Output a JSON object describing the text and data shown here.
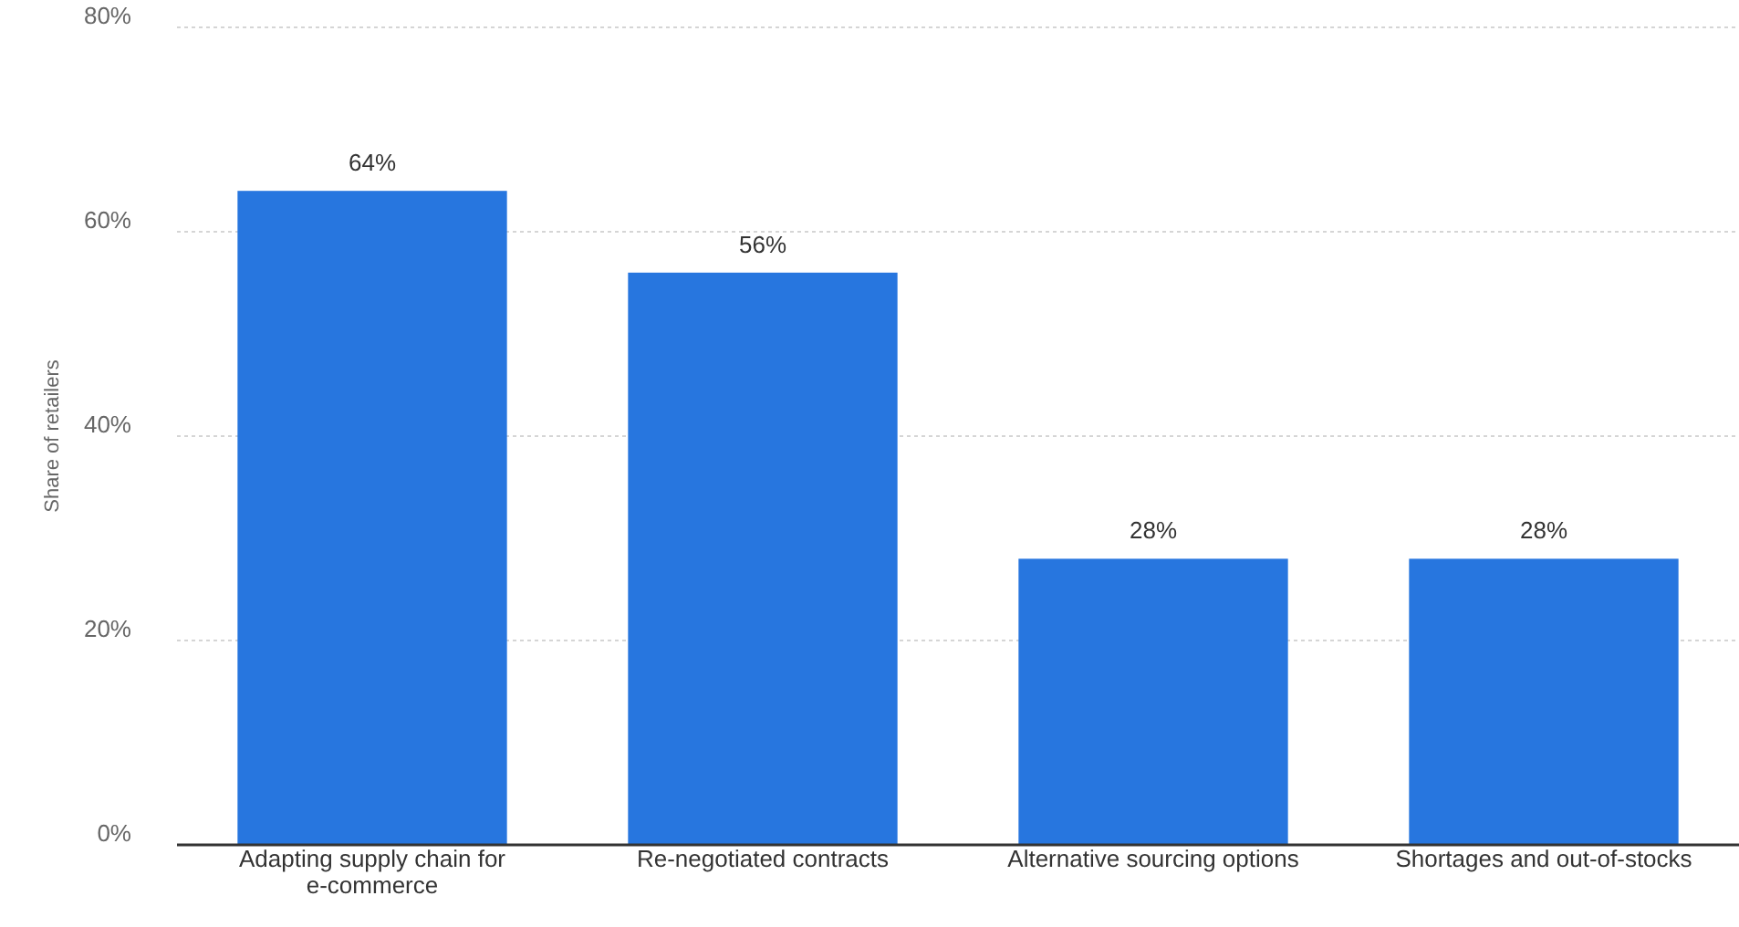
{
  "chart_data": {
    "type": "bar",
    "ylabel": "Share of retailers",
    "categories": [
      "Adapting supply chain for e-commerce",
      "Re-negotiated contracts",
      "Alternative sourcing options",
      "Shortages and out-of-stocks"
    ],
    "values": [
      64,
      56,
      28,
      28
    ],
    "value_labels": [
      "64%",
      "56%",
      "28%",
      "28%"
    ],
    "color": "#2776df",
    "ylim": [
      0,
      80
    ],
    "yticks": [
      {
        "value": 0,
        "label": "0%"
      },
      {
        "value": 20,
        "label": "20%"
      },
      {
        "value": 40,
        "label": "40%"
      },
      {
        "value": 60,
        "label": "60%"
      },
      {
        "value": 80,
        "label": "80%"
      }
    ],
    "grid": "y"
  }
}
